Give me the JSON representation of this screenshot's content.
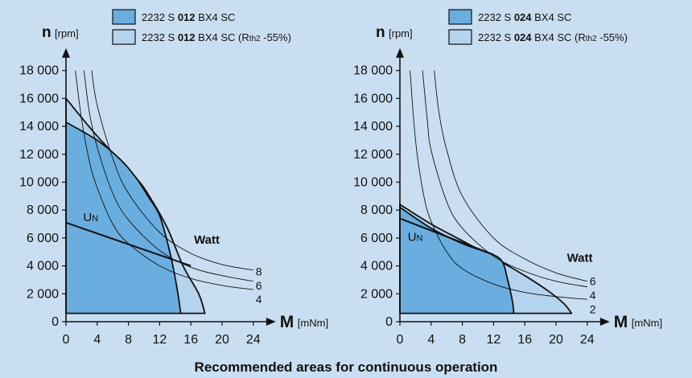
{
  "colors": {
    "background": "#c9dff1",
    "dark_fill": "#6aaedf",
    "light_fill": "#b4d4ee",
    "line": "#111111"
  },
  "footer": "Recommended areas for continuous operation",
  "chart_data": [
    {
      "type": "area",
      "y_label": "n",
      "y_unit": "[rpm]",
      "x_label": "M",
      "x_unit": "[mNm]",
      "xlim": [
        0,
        24
      ],
      "ylim": [
        0,
        18000
      ],
      "x_ticks": [
        0,
        4,
        8,
        12,
        16,
        20,
        24
      ],
      "y_ticks": [
        0,
        2000,
        4000,
        6000,
        8000,
        10000,
        12000,
        14000,
        16000,
        18000
      ],
      "x_tick_labels": [
        "0",
        "4",
        "8",
        "12",
        "16",
        "20",
        "24"
      ],
      "y_tick_labels": [
        "0",
        "2 000",
        "4 000",
        "6 000",
        "8 000",
        "10 000",
        "12 000",
        "14 000",
        "16 000",
        "18 000"
      ],
      "legend": [
        {
          "pre": "2232 S ",
          "bold": "012",
          "post": " BX4 SC",
          "extra": "",
          "small": "",
          "extra_end": "",
          "fill": "dark"
        },
        {
          "pre": "2232 S ",
          "bold": "012",
          "post": " BX4 SC ",
          "extra": "(R",
          "small": "th2",
          "extra_end": " -55%)",
          "fill": "light"
        }
      ],
      "series": [
        {
          "fill": "light",
          "points": [
            [
              0,
              16000
            ],
            [
              4,
              13300
            ],
            [
              9,
              10300
            ],
            [
              11,
              8700
            ],
            [
              13,
              6700
            ],
            [
              15,
              4000
            ],
            [
              17,
              2000
            ],
            [
              17.8,
              600
            ],
            [
              0,
              600
            ]
          ]
        },
        {
          "fill": "dark",
          "points": [
            [
              0,
              14300
            ],
            [
              4,
              13000
            ],
            [
              7,
              11600
            ],
            [
              9,
              10300
            ],
            [
              10.5,
              9000
            ],
            [
              12,
              7600
            ],
            [
              13.3,
              5000
            ],
            [
              14.2,
              2500
            ],
            [
              14.7,
              600
            ],
            [
              0,
              600
            ]
          ]
        }
      ],
      "un_line": {
        "label_main": "U",
        "label_sub": "N",
        "points": [
          [
            0,
            7100
          ],
          [
            16,
            4000
          ]
        ],
        "label_at": [
          2.2,
          7200
        ]
      },
      "watt_title": "Watt",
      "watt_title_at": [
        16.4,
        5600
      ],
      "watt_curves": [
        {
          "label": "8",
          "points": [
            [
              3.3,
              18000
            ],
            [
              4,
              15500
            ],
            [
              6,
              11700
            ],
            [
              8,
              9200
            ],
            [
              12,
              6400
            ],
            [
              16,
              4900
            ],
            [
              20,
              4100
            ],
            [
              24,
              3700
            ]
          ],
          "label_at": [
            24.3,
            3600
          ]
        },
        {
          "label": "6",
          "points": [
            [
              2.3,
              18000
            ],
            [
              3,
              15000
            ],
            [
              4,
              12500
            ],
            [
              6,
              9200
            ],
            [
              8,
              7300
            ],
            [
              12,
              5100
            ],
            [
              16,
              3900
            ],
            [
              20,
              3300
            ],
            [
              24,
              2900
            ]
          ],
          "label_at": [
            24.3,
            2600
          ]
        },
        {
          "label": "4",
          "points": [
            [
              1.2,
              18000
            ],
            [
              2,
              14500
            ],
            [
              3,
              11500
            ],
            [
              4,
              9600
            ],
            [
              6,
              7000
            ],
            [
              8,
              5600
            ],
            [
              12,
              4000
            ],
            [
              16,
              3100
            ],
            [
              20,
              2600
            ],
            [
              24,
              2300
            ]
          ],
          "label_at": [
            24.3,
            1600
          ]
        }
      ]
    },
    {
      "type": "area",
      "y_label": "n",
      "y_unit": "[rpm]",
      "x_label": "M",
      "x_unit": "[mNm]",
      "xlim": [
        0,
        24
      ],
      "ylim": [
        0,
        18000
      ],
      "x_ticks": [
        0,
        4,
        8,
        12,
        16,
        20,
        24
      ],
      "y_ticks": [
        0,
        2000,
        4000,
        6000,
        8000,
        10000,
        12000,
        14000,
        16000,
        18000
      ],
      "x_tick_labels": [
        "0",
        "4",
        "8",
        "12",
        "16",
        "20",
        "24"
      ],
      "y_tick_labels": [
        "0",
        "2 000",
        "4 000",
        "6 000",
        "8 000",
        "10 000",
        "12 000",
        "14 000",
        "16 000",
        "18 000"
      ],
      "legend": [
        {
          "pre": "2232 S ",
          "bold": "024",
          "post": " BX4 SC",
          "extra": "",
          "small": "",
          "extra_end": "",
          "fill": "dark"
        },
        {
          "pre": "2232 S ",
          "bold": "024",
          "post": " BX4 SC ",
          "extra": "(R",
          "small": "th2",
          "extra_end": " -55%)",
          "fill": "light"
        }
      ],
      "series": [
        {
          "fill": "light",
          "points": [
            [
              0,
              8400
            ],
            [
              4,
              7000
            ],
            [
              8,
              5800
            ],
            [
              12,
              4600
            ],
            [
              16,
              3300
            ],
            [
              19,
              2200
            ],
            [
              21,
              1300
            ],
            [
              22,
              600
            ],
            [
              0,
              600
            ]
          ]
        },
        {
          "fill": "dark",
          "points": [
            [
              0,
              8200
            ],
            [
              4,
              6700
            ],
            [
              8,
              5600
            ],
            [
              11,
              5000
            ],
            [
              13,
              4400
            ],
            [
              13.8,
              3000
            ],
            [
              14.4,
              1500
            ],
            [
              14.6,
              600
            ],
            [
              0,
              600
            ]
          ]
        }
      ],
      "un_line": {
        "label_main": "U",
        "label_sub": "N",
        "points": [
          [
            0,
            7400
          ],
          [
            12,
            4800
          ]
        ],
        "label_at": [
          1.0,
          5800
        ]
      },
      "watt_title": "Watt",
      "watt_title_at": [
        21.4,
        4300
      ],
      "watt_curves": [
        {
          "label": "6",
          "points": [
            [
              4.4,
              18000
            ],
            [
              5,
              15000
            ],
            [
              6,
              12300
            ],
            [
              8,
              9000
            ],
            [
              12,
              6000
            ],
            [
              16,
              4500
            ],
            [
              20,
              3500
            ],
            [
              24,
              2900
            ]
          ],
          "label_at": [
            24.3,
            2900
          ]
        },
        {
          "label": "4",
          "points": [
            [
              2.9,
              18000
            ],
            [
              3.5,
              14500
            ],
            [
              4,
              12300
            ],
            [
              6,
              8600
            ],
            [
              8,
              6700
            ],
            [
              12,
              4700
            ],
            [
              16,
              3600
            ],
            [
              20,
              2900
            ],
            [
              24,
              2500
            ]
          ],
          "label_at": [
            24.3,
            1900
          ]
        },
        {
          "label": "2",
          "points": [
            [
              1.3,
              18000
            ],
            [
              2,
              13000
            ],
            [
              3,
              9200
            ],
            [
              4,
              7200
            ],
            [
              6,
              5000
            ],
            [
              8,
              3800
            ],
            [
              12,
              2700
            ],
            [
              16,
              2100
            ],
            [
              20,
              1800
            ],
            [
              24,
              1600
            ]
          ],
          "label_at": [
            24.3,
            900
          ]
        }
      ]
    }
  ]
}
